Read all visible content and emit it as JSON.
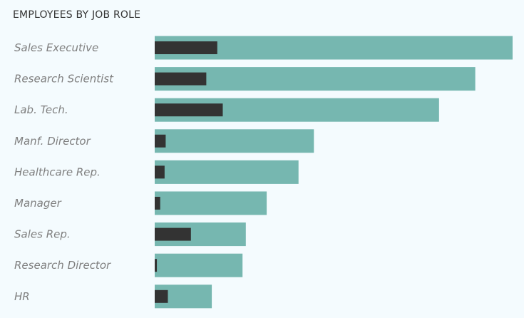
{
  "title": "EMPLOYEES BY JOB ROLE",
  "colors": {
    "background": "#f4fbfe",
    "bar_total": "#76b7b0",
    "bar_attrition": "#333333",
    "label": "#7f7f7f",
    "title": "#333333"
  },
  "chart_data": {
    "type": "bar",
    "orientation": "horizontal",
    "title": "EMPLOYEES BY JOB ROLE",
    "categories": [
      "Sales Executive",
      "Research Scientist",
      "Lab. Tech.",
      "Manf. Director",
      "Healthcare Rep.",
      "Manager",
      "Sales Rep.",
      "Research Director",
      "HR"
    ],
    "series": [
      {
        "values": [
          326,
          292,
          259,
          145,
          131,
          102,
          83,
          80,
          52
        ]
      },
      {
        "values": [
          57,
          47,
          62,
          10,
          9,
          5,
          33,
          2,
          12
        ]
      }
    ],
    "xlim": [
      0,
      326
    ],
    "grid": false,
    "legend": "none"
  }
}
